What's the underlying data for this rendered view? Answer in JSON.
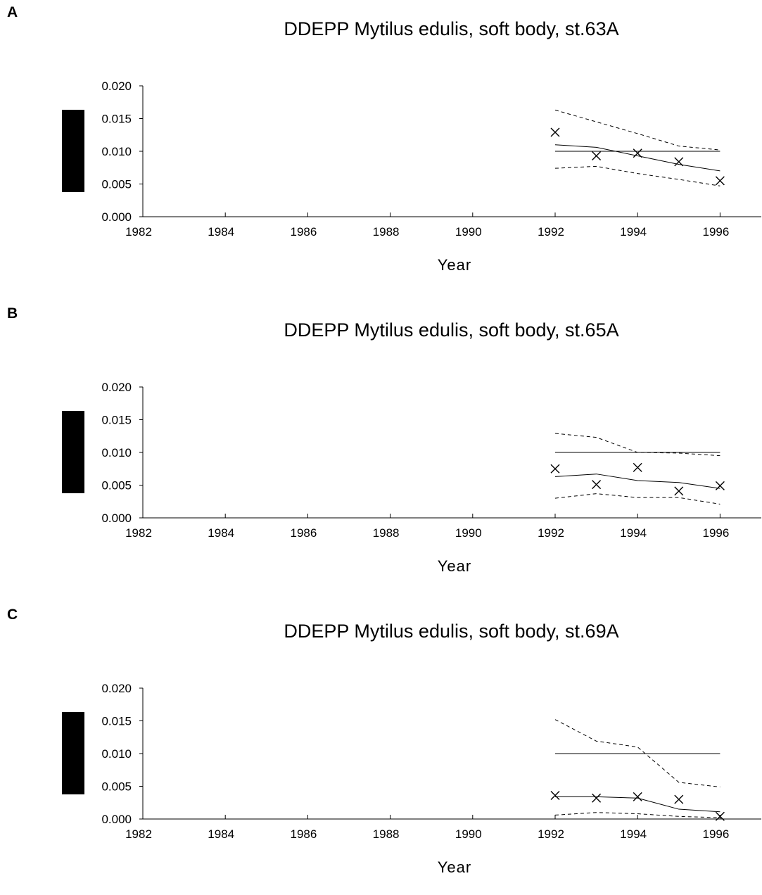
{
  "panels": [
    {
      "letter": "A"
    },
    {
      "letter": "B"
    },
    {
      "letter": "C"
    }
  ],
  "chart_data": [
    {
      "type": "line",
      "title": "DDEPP Mytilus edulis, soft body, st.63A",
      "xlabel": "Year",
      "ylabel": "",
      "xlim": [
        1982,
        1997
      ],
      "ylim": [
        0.0,
        0.02
      ],
      "x_ticks": [
        "1982",
        "1984",
        "1986",
        "1988",
        "1990",
        "1992",
        "1994",
        "1996"
      ],
      "y_ticks": [
        "0.000",
        "0.005",
        "0.010",
        "0.015",
        "0.020"
      ],
      "grid": false,
      "series": [
        {
          "style": "markers-x",
          "x": [
            1992,
            1993,
            1994,
            1995,
            1996
          ],
          "values": [
            0.0129,
            0.0093,
            0.0097,
            0.0084,
            0.0055
          ]
        },
        {
          "style": "solid",
          "x": [
            1992,
            1993,
            1994,
            1995,
            1996
          ],
          "values": [
            0.011,
            0.0106,
            0.0093,
            0.008,
            0.007
          ]
        },
        {
          "style": "dashed",
          "x": [
            1992,
            1993,
            1994,
            1995,
            1996
          ],
          "values": [
            0.0163,
            0.0145,
            0.0127,
            0.0108,
            0.0102
          ]
        },
        {
          "style": "dashed",
          "x": [
            1992,
            1993,
            1994,
            1995,
            1996
          ],
          "values": [
            0.0074,
            0.0077,
            0.0066,
            0.0057,
            0.0047
          ]
        },
        {
          "style": "solid",
          "x": [
            1992,
            1996
          ],
          "values": [
            0.01,
            0.01
          ]
        }
      ]
    },
    {
      "type": "line",
      "title": "DDEPP Mytilus edulis, soft body, st.65A",
      "xlabel": "Year",
      "ylabel": "",
      "xlim": [
        1982,
        1997
      ],
      "ylim": [
        0.0,
        0.02
      ],
      "x_ticks": [
        "1982",
        "1984",
        "1986",
        "1988",
        "1990",
        "1992",
        "1994",
        "1996"
      ],
      "y_ticks": [
        "0.000",
        "0.005",
        "0.010",
        "0.015",
        "0.020"
      ],
      "grid": false,
      "series": [
        {
          "style": "markers-x",
          "x": [
            1992,
            1993,
            1994,
            1995,
            1996
          ],
          "values": [
            0.0075,
            0.0051,
            0.0077,
            0.0041,
            0.0049
          ]
        },
        {
          "style": "solid",
          "x": [
            1992,
            1993,
            1994,
            1995,
            1996
          ],
          "values": [
            0.0063,
            0.0067,
            0.0057,
            0.0054,
            0.0045
          ]
        },
        {
          "style": "dashed",
          "x": [
            1992,
            1993,
            1994,
            1995,
            1996
          ],
          "values": [
            0.0129,
            0.0123,
            0.01,
            0.0099,
            0.0095
          ]
        },
        {
          "style": "dashed",
          "x": [
            1992,
            1993,
            1994,
            1995,
            1996
          ],
          "values": [
            0.003,
            0.0037,
            0.0031,
            0.0031,
            0.0021
          ]
        },
        {
          "style": "solid",
          "x": [
            1992,
            1996
          ],
          "values": [
            0.01,
            0.01
          ]
        }
      ]
    },
    {
      "type": "line",
      "title": "DDEPP Mytilus edulis, soft body, st.69A",
      "xlabel": "Year",
      "ylabel": "",
      "xlim": [
        1982,
        1997
      ],
      "ylim": [
        0.0,
        0.02
      ],
      "x_ticks": [
        "1982",
        "1984",
        "1986",
        "1988",
        "1990",
        "1992",
        "1994",
        "1996"
      ],
      "y_ticks": [
        "0.000",
        "0.005",
        "0.010",
        "0.015",
        "0.020"
      ],
      "grid": false,
      "series": [
        {
          "style": "markers-x",
          "x": [
            1992,
            1993,
            1994,
            1995,
            1996
          ],
          "values": [
            0.0036,
            0.0032,
            0.0034,
            0.003,
            0.0004
          ]
        },
        {
          "style": "solid",
          "x": [
            1992,
            1993,
            1994,
            1995,
            1996
          ],
          "values": [
            0.0034,
            0.0034,
            0.0032,
            0.0015,
            0.0011
          ]
        },
        {
          "style": "dashed",
          "x": [
            1992,
            1993,
            1994,
            1995,
            1996
          ],
          "values": [
            0.0152,
            0.0119,
            0.011,
            0.0056,
            0.0049
          ]
        },
        {
          "style": "dashed",
          "x": [
            1992,
            1993,
            1994,
            1995,
            1996
          ],
          "values": [
            0.0006,
            0.001,
            0.0008,
            0.0004,
            0.0002
          ]
        },
        {
          "style": "solid",
          "x": [
            1992,
            1996
          ],
          "values": [
            0.01,
            0.01
          ]
        }
      ]
    }
  ]
}
